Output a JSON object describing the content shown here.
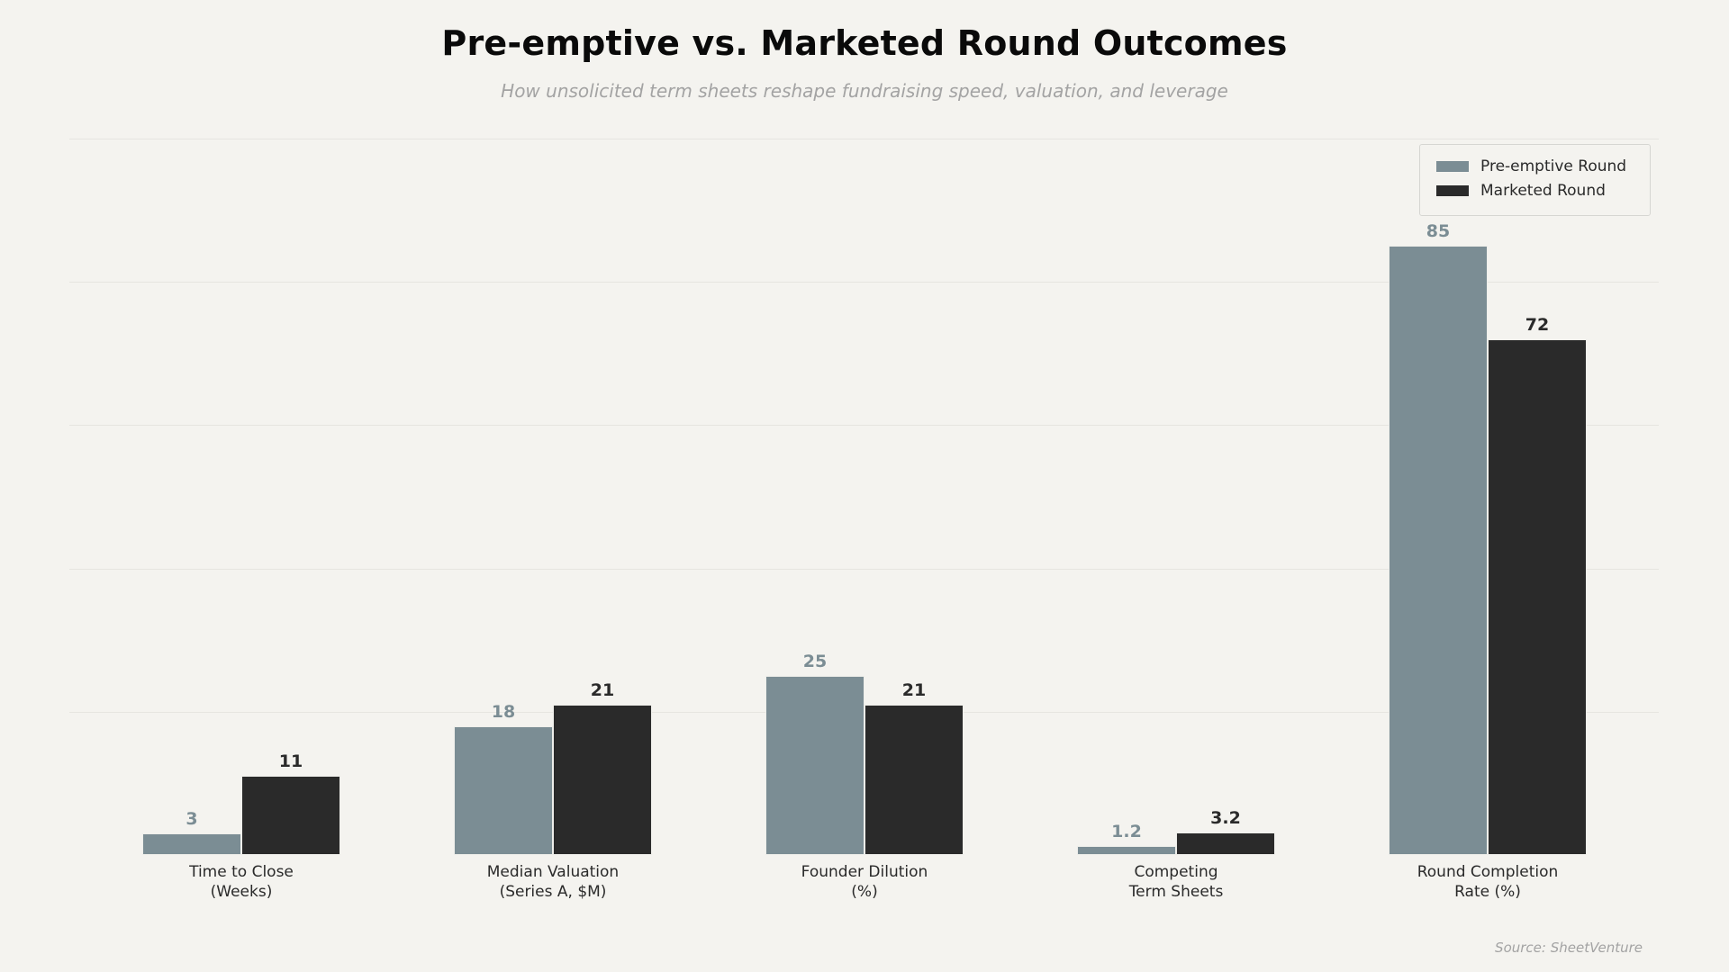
{
  "header": {
    "title": "Pre-emptive vs. Marketed Round Outcomes",
    "subtitle": "How unsolicited term sheets reshape fundraising speed, valuation, and leverage"
  },
  "legend": {
    "items": [
      {
        "label": "Pre-emptive Round",
        "color": "#7b8d94"
      },
      {
        "label": "Marketed Round",
        "color": "#2a2a2a"
      }
    ]
  },
  "footer": {
    "source": "Source: SheetVenture"
  },
  "chart_data": {
    "type": "bar",
    "title": "Pre-emptive vs. Marketed Round Outcomes",
    "subtitle": "How unsolicited term sheets reshape fundraising speed, valuation, and leverage",
    "categories": [
      "Time to Close\n(Weeks)",
      "Median Valuation\n(Series A, $M)",
      "Founder Dilution\n(%)",
      "Competing\nTerm Sheets",
      "Round Completion\nRate (%)"
    ],
    "series": [
      {
        "name": "Pre-emptive Round",
        "color": "#7b8d94",
        "values": [
          3,
          18,
          25,
          1.2,
          85
        ],
        "labels": [
          "3",
          "18",
          "25",
          "1.2",
          "85"
        ]
      },
      {
        "name": "Marketed Round",
        "color": "#2a2a2a",
        "values": [
          11,
          21,
          21,
          3.2,
          72
        ],
        "labels": [
          "11",
          "21",
          "21",
          "3.2",
          "72"
        ]
      }
    ],
    "xlabel": "",
    "ylabel": "",
    "ylim": [
      0,
      100
    ],
    "grid": true,
    "y_axis_visible": false,
    "legend_position": "upper right",
    "source": "Source: SheetVenture"
  }
}
